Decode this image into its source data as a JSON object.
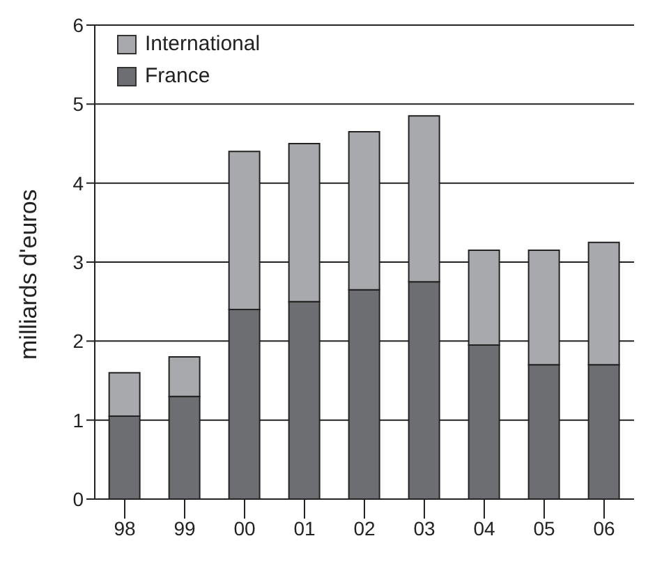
{
  "chart_data": {
    "type": "bar",
    "ylabel": "milliards d'euros",
    "categories": [
      "98",
      "99",
      "00",
      "01",
      "02",
      "03",
      "04",
      "05",
      "06"
    ],
    "stacked": true,
    "series": [
      {
        "name": "France",
        "color": "#6d6e72",
        "values": [
          1.05,
          1.3,
          2.4,
          2.5,
          2.65,
          2.75,
          1.95,
          1.7,
          1.7
        ]
      },
      {
        "name": "International",
        "color": "#a8a9ad",
        "values": [
          0.55,
          0.5,
          2,
          2,
          2,
          2.1,
          1.2,
          1.45,
          1.55
        ]
      }
    ],
    "ylim": [
      0,
      6
    ],
    "yticks": [
      0,
      1,
      2,
      3,
      4,
      5,
      6
    ],
    "grid": "y",
    "legend": "top left"
  }
}
